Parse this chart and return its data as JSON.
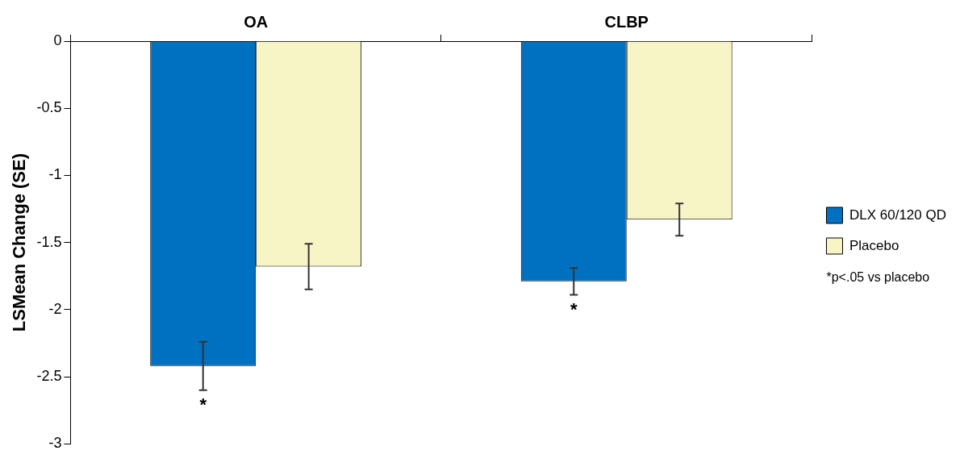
{
  "chart_data": {
    "type": "bar",
    "ylabel": "LSMean Change (SE)",
    "categories": [
      "OA",
      "CLBP"
    ],
    "series": [
      {
        "name": "DLX 60/120 QD",
        "color": "#0070c0",
        "values": [
          -2.42,
          -1.79
        ],
        "errors": [
          0.18,
          0.1
        ],
        "value_labels": [
          "*",
          "*"
        ]
      },
      {
        "name": "Placebo",
        "color": "#f7f5c6",
        "values": [
          -1.68,
          -1.33
        ],
        "errors": [
          0.17,
          0.12
        ]
      }
    ],
    "ylim": [
      -3,
      0
    ],
    "yticks": [
      0,
      -0.5,
      -1,
      -1.5,
      -2,
      -2.5,
      -3
    ],
    "grid": false,
    "legend": "right",
    "annotations": [
      "*p<.05 vs placebo"
    ]
  }
}
